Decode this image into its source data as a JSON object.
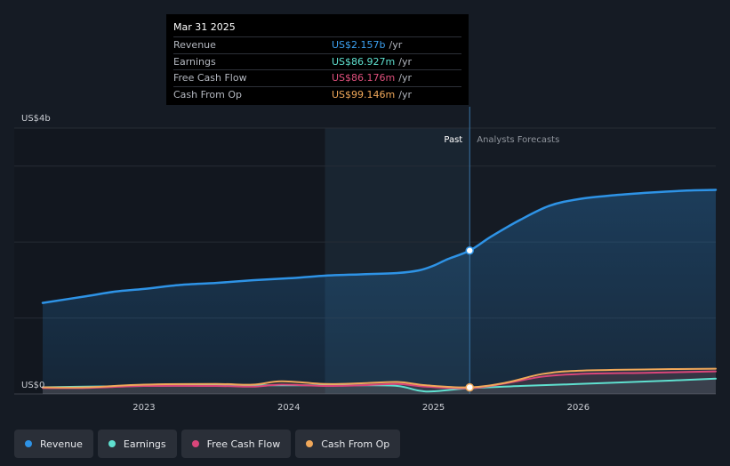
{
  "tooltip": {
    "date": "Mar 31 2025",
    "rows": [
      {
        "label": "Revenue",
        "value": "US$2.157b",
        "unit": "/yr",
        "color": "#3ca0f0"
      },
      {
        "label": "Earnings",
        "value": "US$86.927m",
        "unit": "/yr",
        "color": "#5fe0cf"
      },
      {
        "label": "Free Cash Flow",
        "value": "US$86.176m",
        "unit": "/yr",
        "color": "#e0507d"
      },
      {
        "label": "Cash From Op",
        "value": "US$99.146m",
        "unit": "/yr",
        "color": "#f0a85a"
      }
    ]
  },
  "legend": [
    {
      "label": "Revenue",
      "color": "#2e93e6"
    },
    {
      "label": "Earnings",
      "color": "#5fe0cf"
    },
    {
      "label": "Free Cash Flow",
      "color": "#d9467a"
    },
    {
      "label": "Cash From Op",
      "color": "#f0a85a"
    }
  ],
  "chart_data": {
    "type": "line",
    "y_unit_labels": {
      "top": "US$4b",
      "bottom": "US$0"
    },
    "ylim": [
      0,
      4.0
    ],
    "xlim": [
      2022.3,
      2026.95
    ],
    "x_ticks": [
      2023,
      2024,
      2025,
      2026
    ],
    "past_label": "Past",
    "forecast_label": "Analysts Forecasts",
    "past_region_start": 2024.25,
    "divider_x": 2025.25,
    "grid": true,
    "series": [
      {
        "name": "Revenue",
        "color": "#2e93e6",
        "area": true,
        "x": [
          2022.3,
          2022.6,
          2022.8,
          2023.0,
          2023.25,
          2023.5,
          2023.75,
          2024.0,
          2024.25,
          2024.5,
          2024.75,
          2024.9,
          2025.0,
          2025.1,
          2025.25,
          2025.4,
          2025.6,
          2025.8,
          2026.0,
          2026.25,
          2026.5,
          2026.75,
          2026.95
        ],
        "values": [
          1.37,
          1.47,
          1.54,
          1.58,
          1.64,
          1.67,
          1.71,
          1.74,
          1.78,
          1.8,
          1.82,
          1.86,
          1.93,
          2.03,
          2.157,
          2.37,
          2.62,
          2.83,
          2.93,
          2.99,
          3.03,
          3.06,
          3.07
        ]
      },
      {
        "name": "Earnings",
        "color": "#5fe0cf",
        "area": false,
        "x": [
          2022.3,
          2022.6,
          2023.0,
          2023.5,
          2024.0,
          2024.5,
          2024.75,
          2024.9,
          2025.0,
          2025.25,
          2025.6,
          2026.0,
          2026.5,
          2026.95
        ],
        "values": [
          0.1,
          0.11,
          0.12,
          0.13,
          0.13,
          0.13,
          0.12,
          0.05,
          0.04,
          0.087,
          0.12,
          0.15,
          0.19,
          0.23
        ]
      },
      {
        "name": "Free Cash Flow",
        "color": "#d9467a",
        "area": false,
        "x": [
          2022.3,
          2022.6,
          2023.0,
          2023.5,
          2023.75,
          2023.95,
          2024.25,
          2024.5,
          2024.75,
          2024.95,
          2025.25,
          2025.5,
          2025.75,
          2026.0,
          2026.5,
          2026.95
        ],
        "values": [
          0.09,
          0.09,
          0.12,
          0.12,
          0.11,
          0.14,
          0.12,
          0.13,
          0.15,
          0.11,
          0.086,
          0.16,
          0.26,
          0.3,
          0.32,
          0.34
        ]
      },
      {
        "name": "Cash From Op",
        "color": "#f0a85a",
        "area": false,
        "x": [
          2022.3,
          2022.6,
          2023.0,
          2023.5,
          2023.75,
          2023.95,
          2024.25,
          2024.5,
          2024.75,
          2024.95,
          2025.25,
          2025.5,
          2025.75,
          2026.0,
          2026.5,
          2026.95
        ],
        "values": [
          0.1,
          0.1,
          0.14,
          0.15,
          0.14,
          0.19,
          0.15,
          0.16,
          0.18,
          0.13,
          0.099,
          0.17,
          0.3,
          0.35,
          0.37,
          0.38
        ]
      }
    ],
    "highlight_points": [
      {
        "series": "Revenue",
        "x": 2025.25,
        "y": 2.157
      },
      {
        "series": "Cash From Op",
        "x": 2025.25,
        "y": 0.099
      }
    ]
  }
}
